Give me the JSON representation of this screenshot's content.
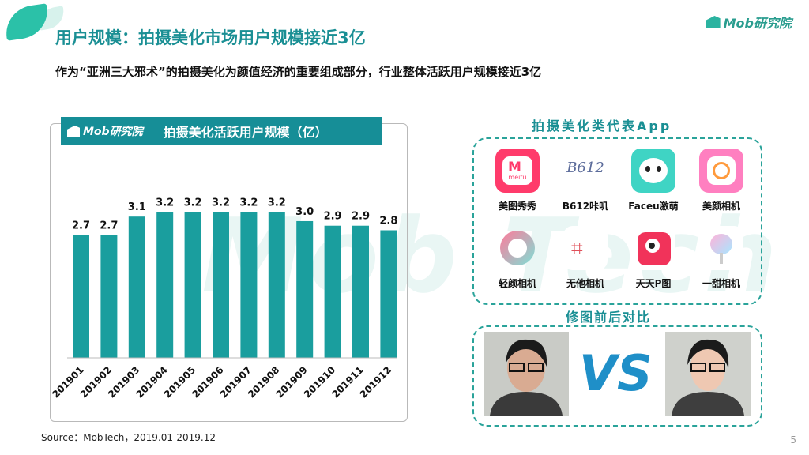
{
  "header": {
    "title": "用户规模：拍摄美化市场用户规模接近3亿",
    "subtitle": "作为“亚洲三大邪术”的拍摄美化为颜值经济的重要组成部分，行业整体活跃用户规模接近3亿",
    "logo_text": "Mob研究院"
  },
  "watermark": "Mob Tech",
  "chart_panel": {
    "logo_text": "Mob研究院",
    "title": "拍摄美化活跃用户规模（亿）"
  },
  "chart_data": {
    "type": "bar",
    "title": "拍摄美化活跃用户规模（亿）",
    "categories": [
      "201901",
      "201902",
      "201903",
      "201904",
      "201905",
      "201906",
      "201907",
      "201908",
      "201909",
      "201910",
      "201911",
      "201912"
    ],
    "values": [
      2.7,
      2.7,
      3.1,
      3.2,
      3.2,
      3.2,
      3.2,
      3.2,
      3.0,
      2.9,
      2.9,
      2.8
    ],
    "value_labels": [
      "2.7",
      "2.7",
      "3.1",
      "3.2",
      "3.2",
      "3.2",
      "3.2",
      "3.2",
      "3.0",
      "2.9",
      "2.9",
      "2.8"
    ],
    "ylim": [
      0,
      3.45
    ],
    "grid": false,
    "color": "#1a9e9e"
  },
  "apps": {
    "title": "拍摄美化类代表App",
    "items": [
      {
        "label": "美图秀秀",
        "icon": "meitu-icon"
      },
      {
        "label": "B612咔叽",
        "icon": "b612-icon"
      },
      {
        "label": "Faceu激萌",
        "icon": "faceu-icon"
      },
      {
        "label": "美颜相机",
        "icon": "beautycam-icon"
      },
      {
        "label": "轻颜相机",
        "icon": "qingyan-icon"
      },
      {
        "label": "无他相机",
        "icon": "wuta-icon"
      },
      {
        "label": "天天P图",
        "icon": "pitu-icon"
      },
      {
        "label": "一甜相机",
        "icon": "yitian-icon"
      }
    ],
    "meitu_icon_text": "meitu",
    "b612_icon_text": "B612"
  },
  "comparison": {
    "title": "修图前后对比",
    "vs_text": "VS"
  },
  "footer": {
    "source": "Source：MobTech，2019.01-2019.12",
    "page": "5"
  }
}
